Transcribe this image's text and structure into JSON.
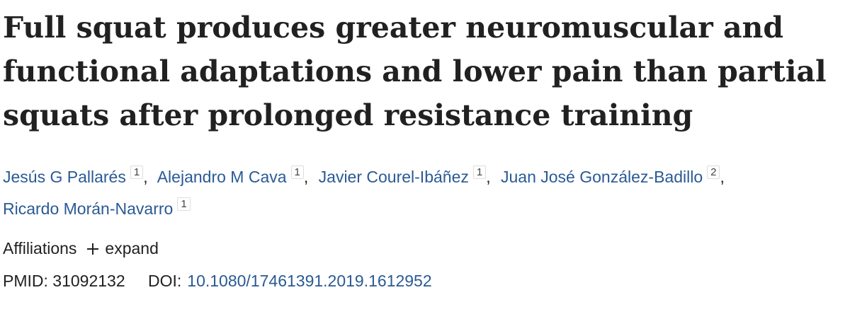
{
  "article": {
    "title": "Full squat produces greater neuromuscular and functional adaptations and lower pain than partial squats after prolonged resistance training",
    "authors": {
      "separator": ",",
      "list": [
        {
          "name": "Jesús G Pallarés",
          "affiliation": "1"
        },
        {
          "name": "Alejandro M Cava",
          "affiliation": "1"
        },
        {
          "name": "Javier Courel-Ibáñez",
          "affiliation": "1"
        },
        {
          "name": "Juan José González-Badillo",
          "affiliation": "2"
        },
        {
          "name": "Ricardo Morán-Navarro",
          "affiliation": "1"
        }
      ]
    },
    "affiliations": {
      "label": "Affiliations",
      "toggle": "expand"
    },
    "identifiers": {
      "pmid": {
        "label": "PMID:",
        "value": "31092132"
      },
      "doi": {
        "label": "DOI:",
        "value": "10.1080/17461391.2019.1612952"
      }
    }
  }
}
